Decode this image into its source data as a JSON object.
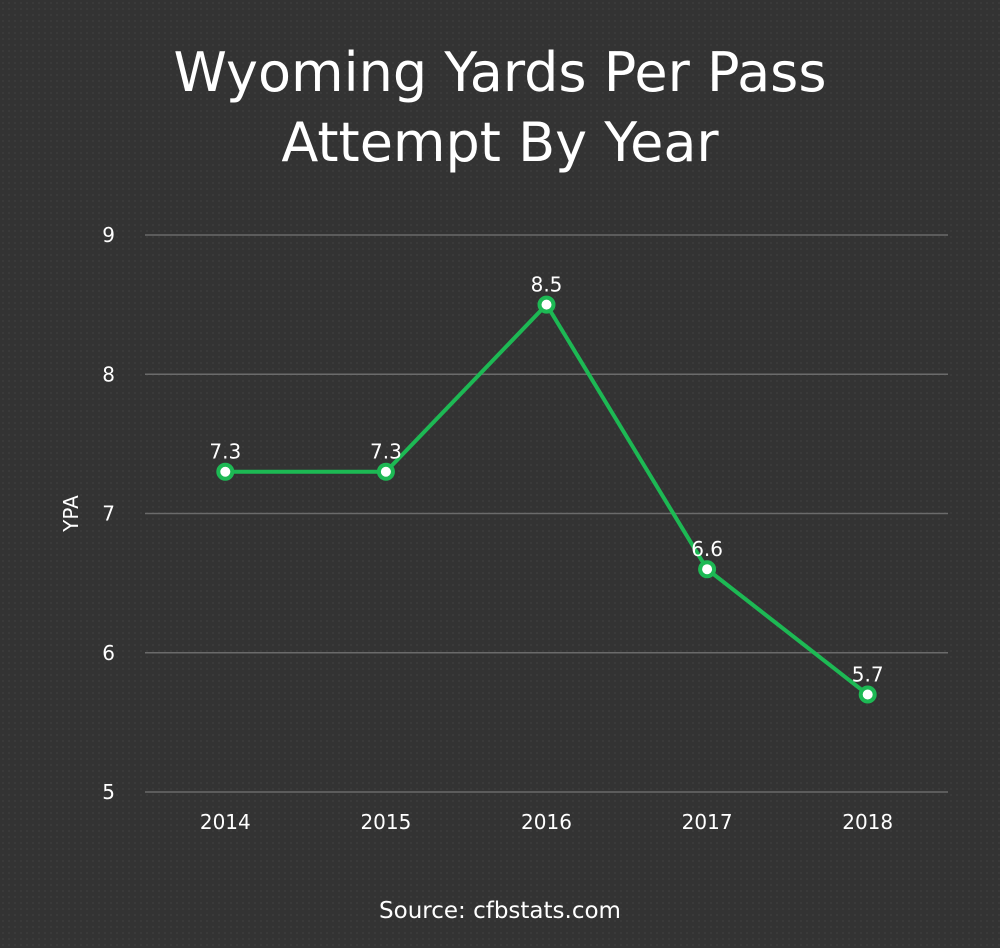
{
  "chart_data": {
    "type": "line",
    "title_lines": [
      "Wyoming Yards Per Pass",
      "Attempt By Year"
    ],
    "xlabel": "",
    "ylabel": "YPA",
    "categories": [
      "2014",
      "2015",
      "2016",
      "2017",
      "2018"
    ],
    "series": [
      {
        "values": [
          7.3,
          7.3,
          8.5,
          6.6,
          5.7
        ],
        "data_labels": [
          "7.3",
          "7.3",
          "8.5",
          "6.6",
          "5.7"
        ],
        "color": "#1db954"
      }
    ],
    "ylim": [
      5,
      9
    ],
    "yticks": [
      "5",
      "6",
      "7",
      "8",
      "9"
    ],
    "grid": true,
    "legend": "none"
  },
  "colors": {
    "background": "#333333",
    "gridline": "#6b6b6b",
    "text": "#ffffff",
    "marker_fill": "#ffffff"
  },
  "source": "Source: cfbstats.com"
}
